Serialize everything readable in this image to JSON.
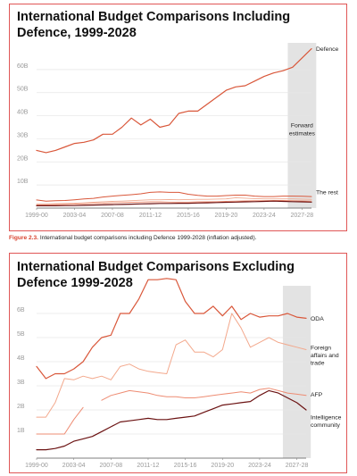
{
  "caption": {
    "figure_label": "Figure 2.3.",
    "text": " International budget comparisons including Defence 1999-2028 (inflation adjusted)."
  },
  "chart_data": [
    {
      "type": "line",
      "title": "International Budget Comparisons Including Defence, 1999-2028",
      "xlabel": "",
      "ylabel": "",
      "x": [
        1999,
        2000,
        2001,
        2002,
        2003,
        2004,
        2005,
        2006,
        2007,
        2008,
        2009,
        2010,
        2011,
        2012,
        2013,
        2014,
        2015,
        2016,
        2017,
        2018,
        2019,
        2020,
        2021,
        2022,
        2023,
        2024,
        2025,
        2026,
        2027,
        2028
      ],
      "xlim": [
        1999,
        2028
      ],
      "x_ticks": [
        {
          "x": 1999,
          "label": "1999-00"
        },
        {
          "x": 2003,
          "label": "2003-04"
        },
        {
          "x": 2007,
          "label": "2007-08"
        },
        {
          "x": 2011,
          "label": "2011-12"
        },
        {
          "x": 2015,
          "label": "2015-16"
        },
        {
          "x": 2019,
          "label": "2019-20"
        },
        {
          "x": 2023,
          "label": "2023-24"
        },
        {
          "x": 2027,
          "label": "2027-28"
        }
      ],
      "ylim": [
        0,
        70
      ],
      "y_ticks": [
        {
          "y": 10,
          "label": "10B"
        },
        {
          "y": 20,
          "label": "20B"
        },
        {
          "y": 30,
          "label": "30B"
        },
        {
          "y": 40,
          "label": "40B"
        },
        {
          "y": 50,
          "label": "50B"
        },
        {
          "y": 60,
          "label": "60B"
        }
      ],
      "grid": true,
      "shaded_region": {
        "x0": 2025.5,
        "x1": 2028.5,
        "label_lines": [
          "Forward",
          "estimates"
        ],
        "label_y": 35
      },
      "series": [
        {
          "name": "Defence",
          "color": "#d9573a",
          "width": 1.2,
          "values": [
            25,
            24,
            25,
            26.5,
            28,
            28.5,
            29.5,
            32,
            32,
            35,
            39,
            36,
            38.5,
            35,
            36,
            41,
            42,
            42,
            45,
            48,
            51,
            52.5,
            53,
            55,
            57,
            58.5,
            59.5,
            61,
            65,
            69
          ]
        },
        {
          "name": "The rest",
          "color": "#d9573a",
          "width": 1.0,
          "values": [
            3.5,
            3,
            3.2,
            3.3,
            3.6,
            4,
            4.2,
            4.8,
            5.2,
            5.5,
            5.8,
            6.2,
            6.8,
            7,
            6.8,
            6.8,
            6,
            5.5,
            5.2,
            5.2,
            5.4,
            5.6,
            5.6,
            5.2,
            5,
            5,
            5.2,
            5.2,
            5.1,
            5
          ]
        },
        {
          "name": "",
          "color": "#f0a98f",
          "width": 0.9,
          "values": [
            1.8,
            1.8,
            1.9,
            2,
            2.1,
            2.3,
            2.5,
            2.7,
            2.9,
            3,
            3.2,
            3.4,
            3.6,
            3.6,
            3.7,
            3.6,
            3.7,
            3.8,
            3.8,
            3.9,
            4,
            4.5,
            4.3,
            4.1,
            4,
            4,
            4,
            4,
            3.9,
            3.8
          ]
        },
        {
          "name": "",
          "color": "#ef8f73",
          "width": 0.9,
          "values": [
            1.4,
            1.4,
            1.5,
            1.6,
            1.7,
            1.8,
            2,
            2.1,
            2.3,
            2.4,
            2.5,
            2.6,
            2.7,
            2.7,
            2.6,
            2.6,
            2.6,
            2.7,
            2.7,
            2.8,
            2.9,
            3,
            3.1,
            3.2,
            3.2,
            3.3,
            3.3,
            3.2,
            3.1,
            3
          ]
        },
        {
          "name": "",
          "color": "#6b1212",
          "width": 1.2,
          "values": [
            1,
            1,
            1,
            1.1,
            1.1,
            1.2,
            1.3,
            1.4,
            1.5,
            1.6,
            1.7,
            1.8,
            1.9,
            2,
            2,
            2.1,
            2.1,
            2.2,
            2.3,
            2.4,
            2.5,
            2.6,
            2.7,
            2.8,
            2.9,
            3,
            2.9,
            2.8,
            2.7,
            2.6
          ]
        }
      ]
    },
    {
      "type": "line",
      "title": "International Budget Comparisons Excluding Defence 1999-2028",
      "xlabel": "",
      "ylabel": "",
      "x": [
        1999,
        2000,
        2001,
        2002,
        2003,
        2004,
        2005,
        2006,
        2007,
        2008,
        2009,
        2010,
        2011,
        2012,
        2013,
        2014,
        2015,
        2016,
        2017,
        2018,
        2019,
        2020,
        2021,
        2022,
        2023,
        2024,
        2025,
        2026,
        2027,
        2028
      ],
      "xlim": [
        1999,
        2028
      ],
      "x_ticks": [
        {
          "x": 1999,
          "label": "1999-00"
        },
        {
          "x": 2003,
          "label": "2003-04"
        },
        {
          "x": 2007,
          "label": "2007-08"
        },
        {
          "x": 2011,
          "label": "2011-12"
        },
        {
          "x": 2015,
          "label": "2015-16"
        },
        {
          "x": 2019,
          "label": "2019-20"
        },
        {
          "x": 2023,
          "label": "2023-24"
        },
        {
          "x": 2027,
          "label": "2027-28"
        }
      ],
      "ylim": [
        0,
        7
      ],
      "y_ticks": [
        {
          "y": 1,
          "label": "1B"
        },
        {
          "y": 2,
          "label": "2B"
        },
        {
          "y": 3,
          "label": "3B"
        },
        {
          "y": 4,
          "label": "4B"
        },
        {
          "y": 5,
          "label": "5B"
        },
        {
          "y": 6,
          "label": "6B"
        }
      ],
      "grid": true,
      "shaded_region": {
        "x0": 2025.5,
        "x1": 2028.5,
        "label_lines": [],
        "label_y": 0
      },
      "series": [
        {
          "name": "ODA",
          "color": "#d9573a",
          "width": 1.2,
          "values": [
            3.8,
            3.3,
            3.5,
            3.5,
            3.7,
            4,
            4.6,
            5,
            5.1,
            6,
            6,
            6.6,
            7.4,
            7.4,
            7.45,
            7.4,
            6.5,
            6,
            6,
            6.3,
            5.9,
            6.3,
            5.75,
            6,
            5.85,
            5.9,
            5.9,
            6,
            5.85,
            5.8
          ]
        },
        {
          "name": "Foreign affairs and trade",
          "color": "#f3a88c",
          "width": 1.0,
          "values": [
            1.7,
            1.7,
            2.3,
            3.3,
            3.25,
            3.4,
            3.3,
            3.4,
            3.25,
            3.8,
            3.9,
            3.7,
            3.6,
            3.55,
            3.5,
            4.7,
            4.9,
            4.4,
            4.4,
            4.2,
            4.5,
            6,
            5.4,
            4.6,
            4.8,
            5,
            4.8,
            4.7,
            4.6,
            4.5
          ]
        },
        {
          "name": "AFP",
          "color": "#ee8c73",
          "width": 1.0,
          "values": [
            1,
            1,
            1,
            1,
            1.6,
            2.1,
            null,
            2.4,
            2.6,
            2.7,
            2.8,
            2.75,
            2.7,
            2.6,
            2.55,
            2.55,
            2.5,
            2.5,
            2.55,
            2.6,
            2.65,
            2.7,
            2.75,
            2.7,
            2.85,
            2.9,
            2.8,
            2.7,
            2.65,
            2.6
          ]
        },
        {
          "name": "Intelligence community",
          "color": "#6b1212",
          "width": 1.2,
          "values": [
            0.35,
            0.35,
            0.4,
            0.5,
            0.7,
            0.8,
            0.9,
            1.1,
            1.3,
            1.5,
            1.55,
            1.6,
            1.65,
            1.6,
            1.6,
            1.65,
            1.7,
            1.75,
            1.9,
            2.05,
            2.2,
            2.25,
            2.3,
            2.35,
            2.6,
            2.8,
            2.7,
            2.5,
            2.3,
            2
          ]
        }
      ]
    }
  ]
}
